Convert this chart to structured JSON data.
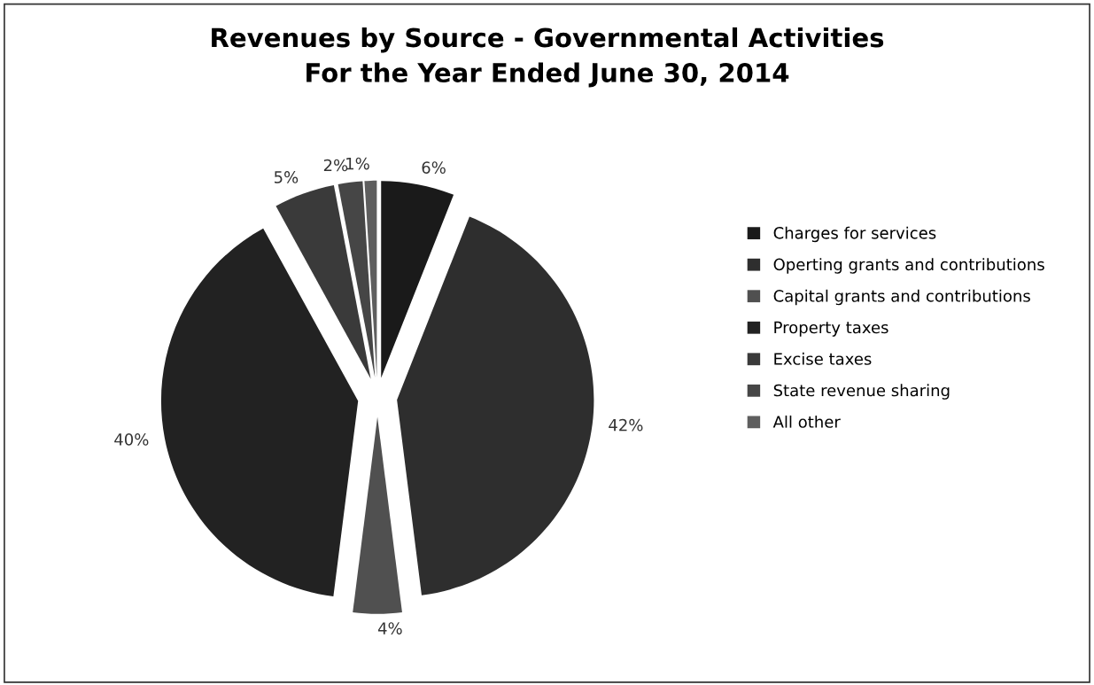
{
  "chart_data": {
    "type": "pie",
    "title": "Revenues by Source - Governmental Activities\nFor the Year Ended June 30, 2014",
    "categories": [
      "Charges for services",
      "Operting grants and contributions",
      "Capital grants and contributions",
      "Property taxes",
      "Excise taxes",
      "State revenue sharing",
      "All other"
    ],
    "values": [
      6,
      42,
      4,
      40,
      5,
      2,
      1
    ],
    "value_labels": [
      "6%",
      "42%",
      "4%",
      "40%",
      "5%",
      "2%",
      "1%"
    ],
    "colors": [
      "#1a1a1a",
      "#2e2e2e",
      "#505050",
      "#222222",
      "#3a3a3a",
      "#464646",
      "#5e5e5e"
    ],
    "legend": "right"
  }
}
